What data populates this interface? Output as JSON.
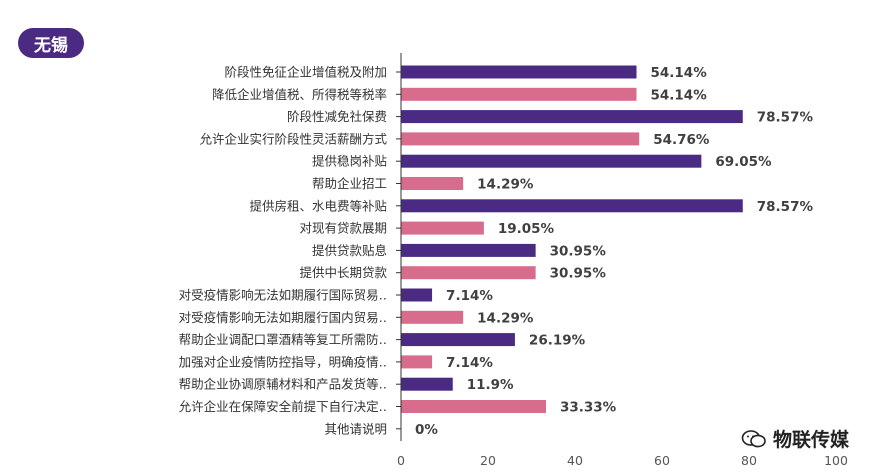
{
  "region_tag": {
    "label": "无锡",
    "color": "#4a2a82"
  },
  "watermark": {
    "text": "物联传媒",
    "icon": "wechat-icon"
  },
  "colors": {
    "series_a": "#4a2a82",
    "series_b": "#d86c8d",
    "axis": "#333333"
  },
  "chart_data": {
    "type": "bar",
    "orientation": "horizontal",
    "categories": [
      "阶段性免征企业增值税及附加",
      "降低企业增值税、所得税等税率",
      "阶段性减免社保费",
      "允许企业实行阶段性灵活薪酬方式",
      "提供稳岗补贴",
      "帮助企业招工",
      "提供房租、水电费等补贴",
      "对现有贷款展期",
      "提供贷款贴息",
      "提供中长期贷款",
      "对受疫情影响无法如期履行国际贸易‥",
      "对受疫情影响无法如期履行国内贸易‥",
      "帮助企业调配口罩酒精等复工所需防‥",
      "加强对企业疫情防控指导，明确疫情‥",
      "帮助企业协调原辅材料和产品发货等‥",
      "允许企业在保障安全前提下自行决定‥",
      "其他请说明"
    ],
    "values": [
      54.14,
      54.14,
      78.57,
      54.76,
      69.05,
      14.29,
      78.57,
      19.05,
      30.95,
      30.95,
      7.14,
      14.29,
      26.19,
      7.14,
      11.9,
      33.33,
      0
    ],
    "value_labels": [
      "54.14%",
      "54.14%",
      "78.57%",
      "54.76%",
      "69.05%",
      "14.29%",
      "78.57%",
      "19.05%",
      "30.95%",
      "30.95%",
      "7.14%",
      "14.29%",
      "26.19%",
      "7.14%",
      "11.9%",
      "33.33%",
      "0%"
    ],
    "bar_colors": [
      "#4a2a82",
      "#d86c8d",
      "#4a2a82",
      "#d86c8d",
      "#4a2a82",
      "#d86c8d",
      "#4a2a82",
      "#d86c8d",
      "#4a2a82",
      "#d86c8d",
      "#4a2a82",
      "#d86c8d",
      "#4a2a82",
      "#d86c8d",
      "#4a2a82",
      "#d86c8d",
      "#4a2a82"
    ],
    "xlim": [
      0,
      100
    ],
    "xticks": [
      0,
      20,
      40,
      60,
      80,
      100
    ],
    "grid": false
  }
}
